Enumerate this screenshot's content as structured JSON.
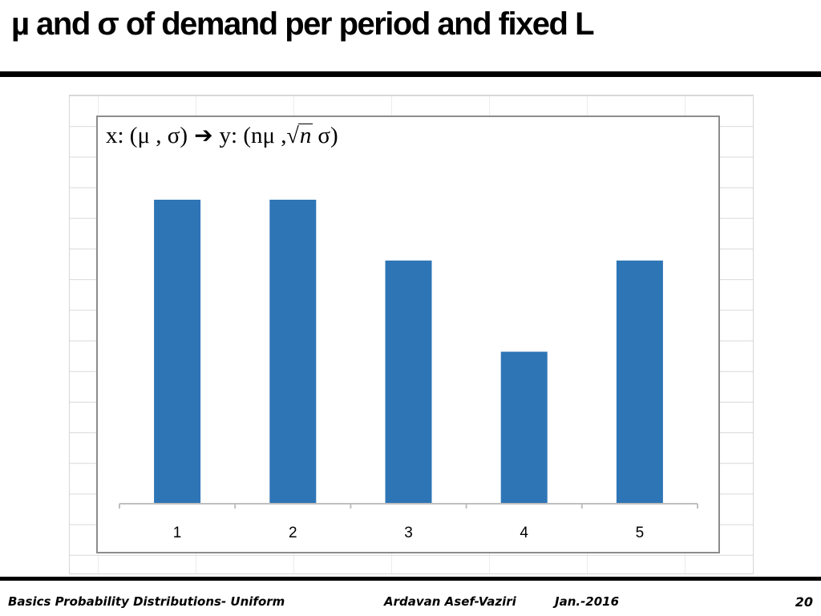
{
  "slide": {
    "title": "µ and σ of demand per period and fixed L",
    "footer_left": "Basics Probability Distributions- Uniform",
    "footer_author": "Ardavan Asef-Vaziri",
    "footer_date": "Jan.-2016",
    "page_number": "20"
  },
  "chart_title_parts": {
    "x_part": "x: (μ , σ)",
    "arrow": "➔",
    "y_part": "y: (nμ ,",
    "sqrt_symbol": "√",
    "sqrt_arg": "n",
    "y_end": "σ)"
  },
  "colors": {
    "bar": "#2E75B6",
    "axis": "#bfbfbf"
  },
  "chart_data": {
    "type": "bar",
    "title": "x: (μ , σ) ➔ y: (nμ , √n σ)",
    "categories": [
      "1",
      "2",
      "3",
      "4",
      "5"
    ],
    "values": [
      5,
      5,
      4,
      2.5,
      4
    ],
    "ylim": [
      0,
      5
    ],
    "grid": false,
    "legend": "none"
  }
}
